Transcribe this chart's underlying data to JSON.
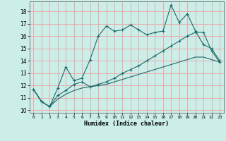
{
  "xlabel": "Humidex (Indice chaleur)",
  "background_color": "#cceee8",
  "grid_color": "#e8aaaa",
  "line_color": "#1a6b6b",
  "xlim": [
    -0.5,
    23.5
  ],
  "ylim": [
    9.8,
    18.8
  ],
  "xticks": [
    0,
    1,
    2,
    3,
    4,
    5,
    6,
    7,
    8,
    9,
    10,
    11,
    12,
    13,
    14,
    15,
    16,
    17,
    18,
    19,
    20,
    21,
    22,
    23
  ],
  "yticks": [
    10,
    11,
    12,
    13,
    14,
    15,
    16,
    17,
    18
  ],
  "curve1_x": [
    0,
    1,
    2,
    3,
    4,
    5,
    6,
    7,
    8,
    9,
    10,
    11,
    12,
    13,
    14,
    15,
    16,
    17,
    18,
    19,
    20,
    21,
    22,
    23
  ],
  "curve1_y": [
    11.7,
    10.7,
    10.3,
    11.8,
    13.5,
    12.4,
    12.6,
    14.1,
    16.0,
    16.8,
    16.4,
    16.5,
    16.9,
    16.5,
    16.1,
    16.3,
    16.4,
    18.5,
    17.1,
    17.8,
    16.4,
    15.3,
    15.0,
    14.0
  ],
  "curve2_x": [
    0,
    1,
    2,
    3,
    4,
    5,
    6,
    7,
    8,
    9,
    10,
    11,
    12,
    13,
    14,
    15,
    16,
    17,
    18,
    19,
    20,
    21,
    22,
    23
  ],
  "curve2_y": [
    11.7,
    10.7,
    10.3,
    11.2,
    11.6,
    12.1,
    12.3,
    11.9,
    12.1,
    12.3,
    12.6,
    13.0,
    13.3,
    13.6,
    14.0,
    14.4,
    14.8,
    15.2,
    15.6,
    16.0,
    16.3,
    16.3,
    14.8,
    13.9
  ],
  "curve3_x": [
    0,
    1,
    2,
    3,
    4,
    5,
    6,
    7,
    8,
    9,
    10,
    11,
    12,
    13,
    14,
    15,
    16,
    17,
    18,
    19,
    20,
    21,
    22,
    23
  ],
  "curve3_y": [
    11.7,
    10.7,
    10.3,
    10.9,
    11.3,
    11.6,
    11.8,
    11.9,
    12.0,
    12.1,
    12.3,
    12.5,
    12.7,
    12.9,
    13.1,
    13.3,
    13.5,
    13.7,
    13.9,
    14.1,
    14.3,
    14.3,
    14.1,
    13.9
  ]
}
